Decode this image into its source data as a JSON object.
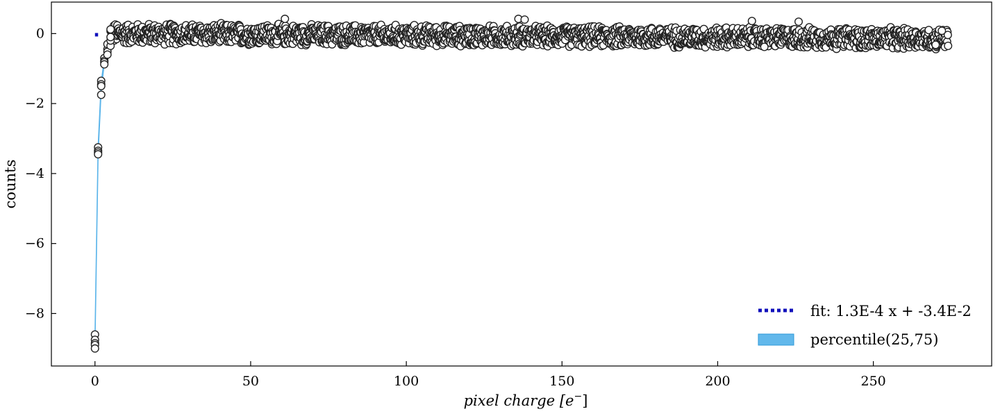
{
  "chart_data": {
    "type": "scatter",
    "xlabel_main": "pixel charge",
    "xlabel_unit": "[e",
    "xlabel_sup": "−",
    "xlabel_close": "]",
    "ylabel": "counts",
    "xlim": [
      -14,
      288
    ],
    "ylim": [
      -9.5,
      0.9
    ],
    "xticks": [
      0,
      50,
      100,
      150,
      200,
      250
    ],
    "xtick_labels": [
      "0",
      "50",
      "100",
      "150",
      "200",
      "250"
    ],
    "yticks": [
      0,
      -2,
      -4,
      -6,
      -8
    ],
    "ytick_labels": [
      "0",
      "−2",
      "−4",
      "−6",
      "−8"
    ],
    "grid": false,
    "legend_position": "lower-right",
    "legend": [
      {
        "label": "fit: 1.3E-4 x + -3.4E-2",
        "style": "dotted",
        "color": "#1010bb"
      },
      {
        "label": "percentile(25,75)",
        "style": "patch",
        "color": "#5ab4ea"
      }
    ],
    "fit": {
      "slope": 0.00013,
      "intercept": -0.034,
      "x_range": [
        0,
        1
      ],
      "color": "#1010bb"
    },
    "percentile_band": {
      "color": "#5ab4ea",
      "x": [
        0,
        1,
        2,
        3,
        4,
        5,
        6,
        8,
        10,
        15,
        20,
        274
      ],
      "lower": [
        -8.9,
        -3.45,
        -1.6,
        -0.85,
        -0.5,
        -0.3,
        -0.12,
        -0.07,
        -0.06,
        -0.06,
        -0.06,
        -0.3
      ],
      "upper": [
        -8.7,
        -3.25,
        -1.4,
        -0.7,
        -0.4,
        -0.2,
        -0.05,
        0.0,
        0.02,
        0.03,
        0.03,
        -0.1
      ]
    },
    "series": [
      {
        "marker": "open-circle",
        "edge_color": "#222222",
        "points": [
          [
            0,
            -8.6
          ],
          [
            0,
            -8.75
          ],
          [
            0,
            -8.85
          ],
          [
            0,
            -8.9
          ],
          [
            0,
            -9.0
          ],
          [
            1,
            -3.25
          ],
          [
            1,
            -3.35
          ],
          [
            1,
            -3.4
          ],
          [
            1,
            -3.45
          ],
          [
            2,
            -1.35
          ],
          [
            2,
            -1.45
          ],
          [
            2,
            -1.5
          ],
          [
            2,
            -1.75
          ],
          [
            3,
            -0.7
          ],
          [
            3,
            -0.78
          ],
          [
            3,
            -0.82
          ],
          [
            3,
            -0.88
          ],
          [
            4,
            -0.45
          ],
          [
            4,
            -0.52
          ],
          [
            4,
            -0.6
          ],
          [
            4,
            -0.3
          ],
          [
            5,
            -0.35
          ],
          [
            5,
            -0.2
          ],
          [
            5,
            -0.1
          ],
          [
            5,
            0.12
          ],
          [
            61,
            0.42
          ],
          [
            136,
            0.42
          ],
          [
            138,
            0.4
          ],
          [
            211,
            0.36
          ],
          [
            215,
            -0.38
          ],
          [
            226,
            0.34
          ],
          [
            273,
            -0.38
          ],
          [
            274,
            -0.35
          ],
          [
            272,
            0.08
          ],
          [
            270,
            -0.32
          ]
        ],
        "noise_band": {
          "x_start": 5,
          "x_end": 274,
          "step": 0.12,
          "center_start": 0.0,
          "center_end": -0.15,
          "spread": 0.33
        }
      }
    ]
  }
}
